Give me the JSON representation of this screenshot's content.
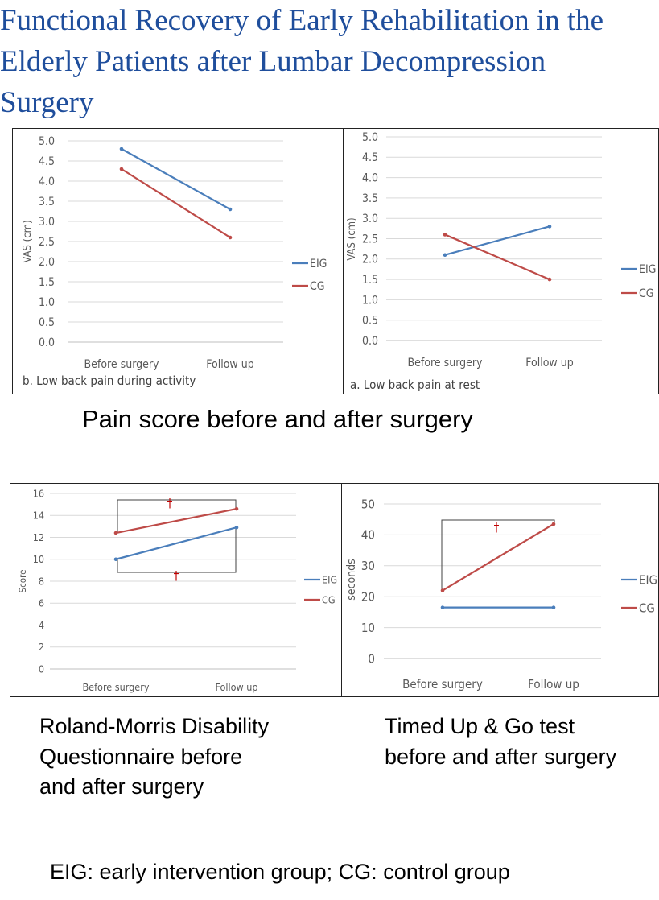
{
  "title_lines": [
    "Functional Recovery of Early Rehabilitation in the",
    "Elderly Patients after Lumbar Decompression",
    "Surgery"
  ],
  "captions": {
    "pain": "Pain score before and after surgery",
    "rm": "Roland-Morris Disability Questionnaire before and after surgery",
    "tug": "Timed Up & Go test before and after surgery",
    "footnote": "EIG: early intervention group; CG: control group"
  },
  "colors": {
    "EIG": "#4a7ebb",
    "CG": "#be4b48",
    "grid": "#d9d9d9",
    "axis_text": "#595959",
    "title": "#1f4e9c"
  },
  "chart_data": [
    {
      "type": "line",
      "title": "b. Low back pain during activity",
      "ylabel": "VAS (cm)",
      "categories": [
        "Before surgery",
        "Follow up"
      ],
      "ylim": [
        0,
        5
      ],
      "yticks": [
        "0.0",
        "0.5",
        "1.0",
        "1.5",
        "2.0",
        "2.5",
        "3.0",
        "3.5",
        "4.0",
        "4.5",
        "5.0"
      ],
      "grid": true,
      "legend": "right",
      "series": [
        {
          "name": "EIG",
          "values": [
            4.8,
            3.3
          ]
        },
        {
          "name": "CG",
          "values": [
            4.3,
            2.6
          ]
        }
      ]
    },
    {
      "type": "line",
      "title": "a. Low back pain at rest",
      "ylabel": "VAS (cm)",
      "categories": [
        "Before surgery",
        "Follow up"
      ],
      "ylim": [
        0,
        5
      ],
      "yticks": [
        "0.0",
        "0.5",
        "1.0",
        "1.5",
        "2.0",
        "2.5",
        "3.0",
        "3.5",
        "4.0",
        "4.5",
        "5.0"
      ],
      "grid": true,
      "legend": "right",
      "series": [
        {
          "name": "EIG",
          "values": [
            2.1,
            2.8
          ]
        },
        {
          "name": "CG",
          "values": [
            2.6,
            1.5
          ]
        }
      ]
    },
    {
      "type": "line",
      "title": "",
      "ylabel": "Score",
      "categories": [
        "Before surgery",
        "Follow up"
      ],
      "ylim": [
        0,
        16
      ],
      "yticks": [
        "0",
        "2",
        "4",
        "6",
        "8",
        "10",
        "12",
        "14",
        "16"
      ],
      "grid": true,
      "legend": "right",
      "annotations": [
        "†",
        "†"
      ],
      "series": [
        {
          "name": "EIG",
          "values": [
            10.0,
            12.9
          ]
        },
        {
          "name": "CG",
          "values": [
            12.4,
            14.6
          ]
        }
      ]
    },
    {
      "type": "line",
      "title": "",
      "ylabel": "seconds",
      "categories": [
        "Before surgery",
        "Follow up"
      ],
      "ylim": [
        0,
        50
      ],
      "yticks": [
        "0",
        "10",
        "20",
        "30",
        "40",
        "50"
      ],
      "grid": true,
      "legend": "right",
      "annotations": [
        "†"
      ],
      "series": [
        {
          "name": "EIG",
          "values": [
            16.5,
            16.5
          ]
        },
        {
          "name": "CG",
          "values": [
            22,
            43.5
          ]
        }
      ]
    }
  ]
}
